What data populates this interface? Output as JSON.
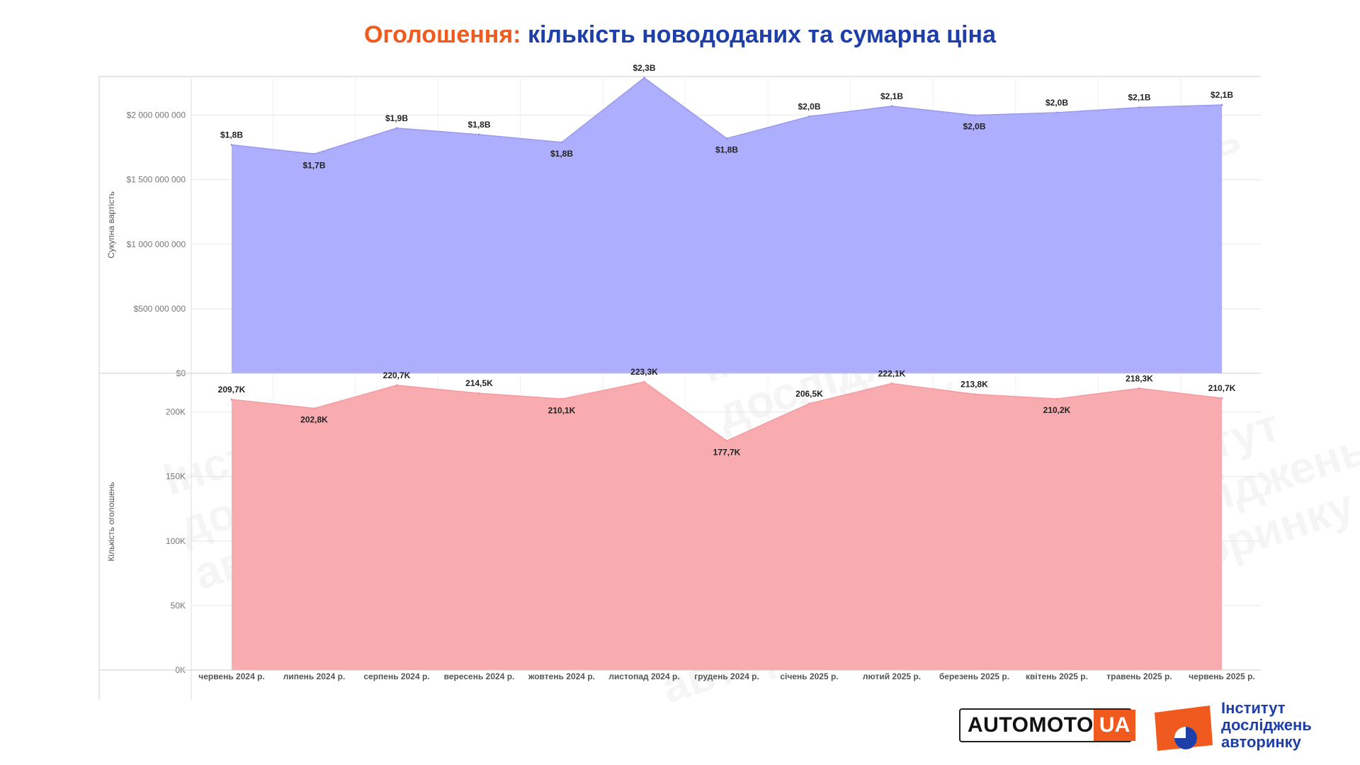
{
  "title": {
    "accent": "Оголошення:",
    "main": "кількість новододаних та сумарна ціна"
  },
  "colors": {
    "accent": "#f05a1e",
    "main": "#1f3fa8",
    "top_fill": "#aaaaff",
    "top_line": "#9999ee",
    "bottom_fill": "#f8a8ac",
    "bottom_line": "#f59aa0"
  },
  "chart_data": [
    {
      "type": "area",
      "ylabel": "Сукупна вартість",
      "ylim": [
        0,
        2300000000
      ],
      "yticks": [
        {
          "value": 0,
          "label": "$0"
        },
        {
          "value": 500000000,
          "label": "$500 000 000"
        },
        {
          "value": 1000000000,
          "label": "$1 000 000 000"
        },
        {
          "value": 1500000000,
          "label": "$1 500 000 000"
        },
        {
          "value": 2000000000,
          "label": "$2 000 000 000"
        }
      ],
      "grid": true,
      "categories": [
        "червень 2024 р.",
        "липень 2024 р.",
        "серпень 2024 р.",
        "вересень 2024 р.",
        "жовтень 2024 р.",
        "листопад 2024 р.",
        "грудень 2024 р.",
        "січень 2025 р.",
        "лютий 2025 р.",
        "березень 2025 р.",
        "квітень 2025 р.",
        "травень 2025 р.",
        "червень 2025 р."
      ],
      "values": [
        1770000000,
        1700000000,
        1900000000,
        1850000000,
        1790000000,
        2290000000,
        1820000000,
        1990000000,
        2070000000,
        2000000000,
        2020000000,
        2060000000,
        2080000000
      ],
      "data_labels": [
        "$1,8B",
        "$1,7B",
        "$1,9B",
        "$1,8B",
        "$1,8B",
        "$2,3B",
        "$1,8B",
        "$2,0B",
        "$2,1B",
        "$2,0B",
        "$2,0B",
        "$2,1B",
        "$2,1B"
      ]
    },
    {
      "type": "area",
      "ylabel": "Кількість оголошень",
      "ylim": [
        0,
        230000
      ],
      "yticks": [
        {
          "value": 0,
          "label": "0K"
        },
        {
          "value": 50000,
          "label": "50K"
        },
        {
          "value": 100000,
          "label": "100K"
        },
        {
          "value": 150000,
          "label": "150K"
        },
        {
          "value": 200000,
          "label": "200K"
        }
      ],
      "grid": true,
      "categories": [
        "червень 2024 р.",
        "липень 2024 р.",
        "серпень 2024 р.",
        "вересень 2024 р.",
        "жовтень 2024 р.",
        "листопад 2024 р.",
        "грудень 2024 р.",
        "січень 2025 р.",
        "лютий 2025 р.",
        "березень 2025 р.",
        "квітень 2025 р.",
        "травень 2025 р.",
        "червень 2025 р."
      ],
      "values": [
        209700,
        202800,
        220700,
        214500,
        210100,
        223300,
        177700,
        206500,
        222100,
        213800,
        210200,
        218300,
        210700
      ],
      "data_labels": [
        "209,7K",
        "202,8K",
        "220,7K",
        "214,5K",
        "210,1K",
        "223,3K",
        "177,7K",
        "206,5K",
        "222,1K",
        "213,8K",
        "210,2K",
        "218,3K",
        "210,7K"
      ]
    }
  ],
  "watermark": [
    "Інститут",
    "досліджень",
    "авторинку"
  ],
  "logos": {
    "automoto_left": "AUTOMOTO",
    "automoto_right": "UA",
    "institute_lines": [
      "Інститут",
      "досліджень",
      "авторинку"
    ]
  }
}
